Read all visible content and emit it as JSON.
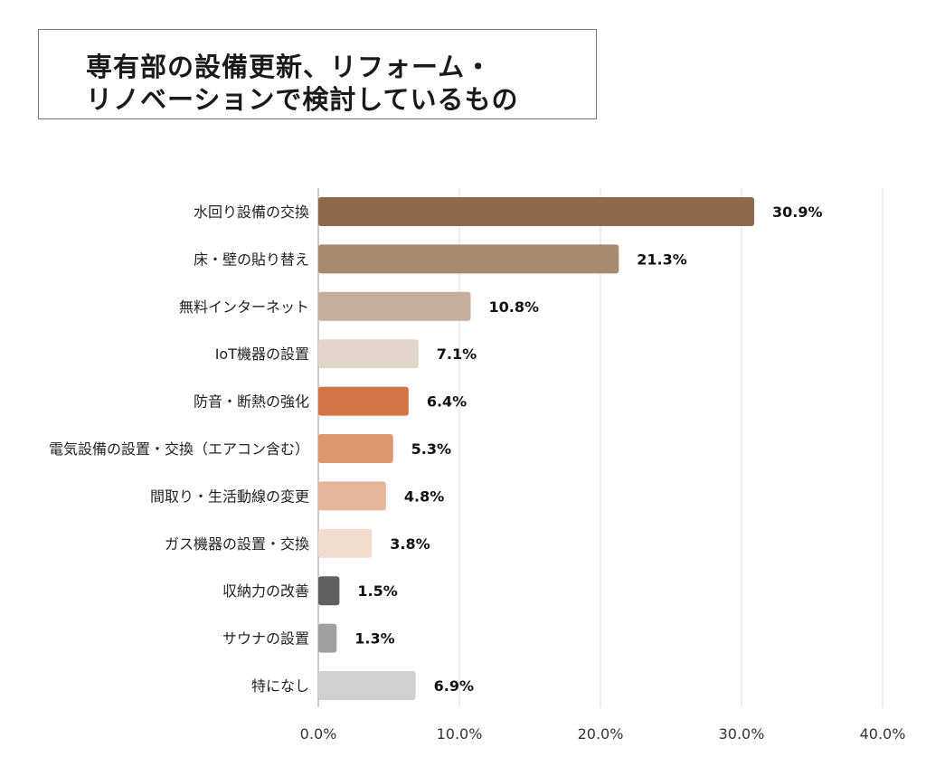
{
  "title": {
    "line1": "専有部の設備更新、リフォーム・",
    "line2": "リノベーションで検討しているもの"
  },
  "chart_data": {
    "type": "bar",
    "orientation": "horizontal",
    "title": "専有部の設備更新、リフォーム・リノベーションで検討しているもの",
    "categories": [
      "水回り設備の交換",
      "床・壁の貼り替え",
      "無料インターネット",
      "IoT機器の設置",
      "防音・断熱の強化",
      "電気設備の設置・交換（エアコン含む）",
      "間取り・生活動線の変更",
      "ガス機器の設置・交換",
      "収納力の改善",
      "サウナの設置",
      "特になし"
    ],
    "values": [
      30.9,
      21.3,
      10.8,
      7.1,
      6.4,
      5.3,
      4.8,
      3.8,
      1.5,
      1.3,
      6.9
    ],
    "value_labels": [
      "30.9%",
      "21.3%",
      "10.8%",
      "7.1%",
      "6.4%",
      "5.3%",
      "4.8%",
      "3.8%",
      "1.5%",
      "1.3%",
      "6.9%"
    ],
    "colors": [
      "#8e6a4c",
      "#a88a6e",
      "#c6ae9b",
      "#e2d6cb",
      "#d27645",
      "#dc9670",
      "#e6b59a",
      "#f2dccd",
      "#606060",
      "#a0a0a0",
      "#d0d0d0"
    ],
    "xaxis": {
      "ticks": [
        0,
        10,
        20,
        30,
        40
      ],
      "tick_labels": [
        "0.0%",
        "10.0%",
        "20.0%",
        "30.0%",
        "40.0%"
      ],
      "range": [
        0,
        40
      ]
    },
    "grid": true,
    "gridline_color": "#dddddd"
  }
}
